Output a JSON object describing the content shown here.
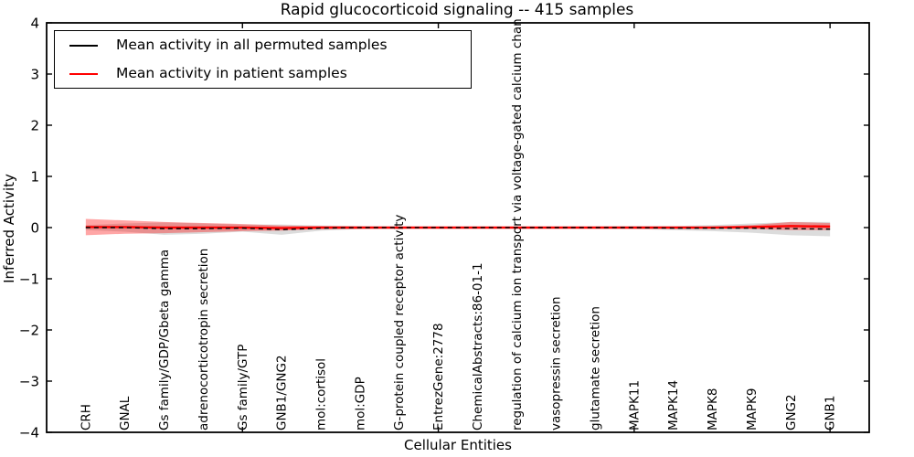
{
  "figure": {
    "title": "Rapid glucocorticoid signaling -- 415 samples",
    "xlabel": "Cellular Entities",
    "ylabel": "Inferred Activity"
  },
  "legend": {
    "entries": [
      {
        "label": "Mean activity in all permuted samples",
        "color": "#000000"
      },
      {
        "label": "Mean activity in patient samples",
        "color": "#ff0000"
      }
    ]
  },
  "chart_data": {
    "type": "line",
    "title": "Rapid glucocorticoid signaling -- 415 samples",
    "xlabel": "Cellular Entities",
    "ylabel": "Inferred Activity",
    "xlim": [
      0,
      21
    ],
    "ylim": [
      -4,
      4
    ],
    "xticks": [
      5,
      10,
      15,
      20
    ],
    "yticks": [
      -4,
      -3,
      -2,
      -1,
      0,
      1,
      2,
      3,
      4
    ],
    "grid": false,
    "legend_position": "upper left",
    "x": [
      1,
      2,
      3,
      4,
      5,
      6,
      7,
      8,
      9,
      10,
      11,
      12,
      13,
      14,
      15,
      16,
      17,
      18,
      19,
      20
    ],
    "categories": [
      "CRH",
      "GNAL",
      "Gs family/GDP/Gbeta gamma",
      "adrenocorticotropin secretion",
      "Gs family/GTP",
      "GNB1/GNG2",
      "mol:cortisol",
      "mol:GDP",
      "G-protein coupled receptor activity",
      "EntrezGene:2778",
      "ChemicalAbstracts:86-01-1",
      "regulation of calcium ion transport via voltage-gated calcium chan",
      "vasopressin secretion",
      "glutamate secretion",
      "MAPK11",
      "MAPK14",
      "MAPK8",
      "MAPK9",
      "GNG2",
      "GNB1"
    ],
    "series": [
      {
        "name": "Mean activity in all permuted samples",
        "color": "#000000",
        "style": "dashed",
        "band_color": "rgba(130,130,130,0.28)",
        "values": [
          0,
          0,
          -0.02,
          -0.02,
          -0.01,
          -0.04,
          -0.01,
          0,
          0,
          0,
          0,
          0,
          0,
          0,
          0,
          -0.01,
          -0.01,
          -0.01,
          -0.02,
          -0.03
        ],
        "band": [
          0.05,
          0.08,
          0.12,
          0.1,
          0.07,
          0.1,
          0.05,
          0.03,
          0.02,
          0.01,
          0.01,
          0.01,
          0.01,
          0.02,
          0.03,
          0.04,
          0.06,
          0.09,
          0.13,
          0.14
        ]
      },
      {
        "name": "Mean activity in patient samples",
        "color": "#ff0000",
        "style": "solid",
        "band_color": "rgba(255,0,0,0.35)",
        "values": [
          0.01,
          0.01,
          0,
          0,
          0,
          -0.01,
          0,
          0,
          0,
          0,
          0,
          0,
          0,
          0,
          0,
          0,
          0,
          0.01,
          0.03,
          0.02
        ],
        "band": [
          0.16,
          0.13,
          0.11,
          0.09,
          0.07,
          0.05,
          0.03,
          0.02,
          0.01,
          0.01,
          0.01,
          0.01,
          0.01,
          0.01,
          0.01,
          0.01,
          0.02,
          0.04,
          0.08,
          0.07
        ]
      }
    ]
  }
}
